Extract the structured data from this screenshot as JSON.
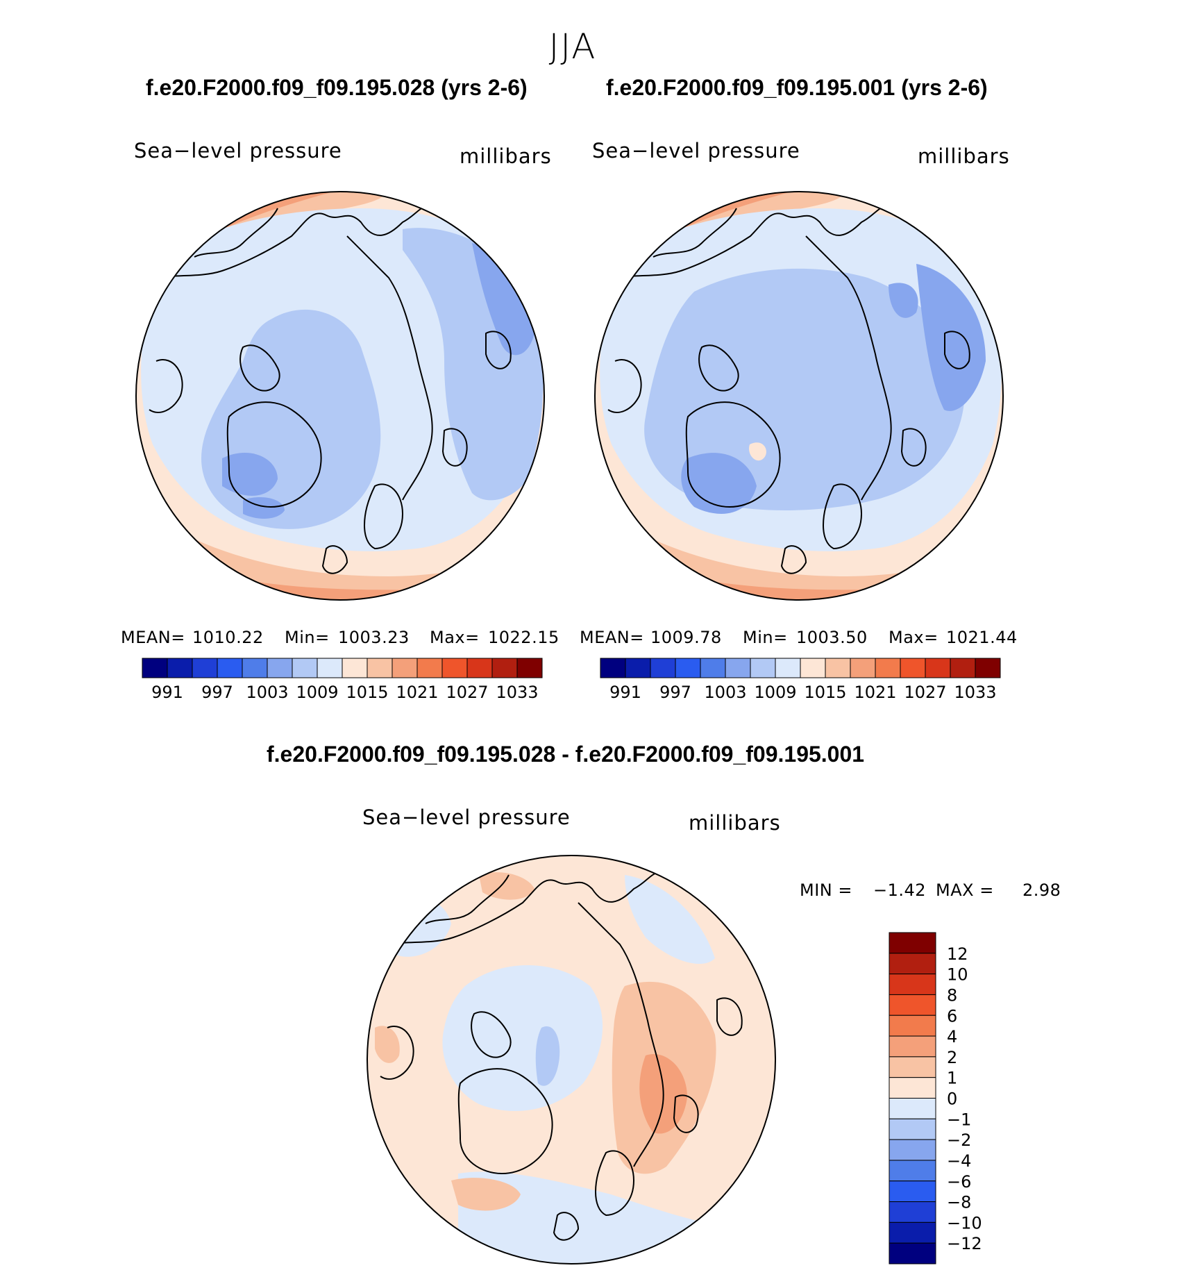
{
  "figure": {
    "season": "JJA"
  },
  "panels": [
    {
      "title": "f.e20.F2000.f09_f09.195.028 (yrs 2-6)",
      "variable": "Sea−level pressure",
      "units": "millibars",
      "stats": {
        "mean_label": "MEAN=",
        "mean": "1010.22",
        "min_label": "Min=",
        "min": "1003.23",
        "max_label": "Max=",
        "max": "1022.15"
      }
    },
    {
      "title": "f.e20.F2000.f09_f09.195.001 (yrs 2-6)",
      "variable": "Sea−level pressure",
      "units": "millibars",
      "stats": {
        "mean_label": "MEAN=",
        "mean": "1009.78",
        "min_label": "Min=",
        "min": "1003.50",
        "max_label": "Max=",
        "max": "1021.44"
      }
    },
    {
      "title": "f.e20.F2000.f09_f09.195.028 - f.e20.F2000.f09_f09.195.001",
      "variable": "Sea−level pressure",
      "units": "millibars",
      "stats": {
        "min_label": "MIN =",
        "min": "−1.42",
        "max_label": "MAX =",
        "max": "2.98"
      }
    }
  ],
  "colorbars": {
    "absolute": {
      "colors": [
        "#00007f",
        "#0a1dab",
        "#1f3fd6",
        "#2a5cf0",
        "#4f7de9",
        "#87a6ee",
        "#b2c9f5",
        "#dce9fb",
        "#fde6d6",
        "#f8c3a4",
        "#f4a07a",
        "#f27b4c",
        "#ef552b",
        "#d8361a",
        "#b11f10",
        "#7f0000"
      ],
      "tick_labels": [
        "991",
        "997",
        "1003",
        "1009",
        "1015",
        "1021",
        "1027",
        "1033"
      ]
    },
    "difference": {
      "colors": [
        "#7f0000",
        "#b11f10",
        "#d8361a",
        "#ef552b",
        "#f27b4c",
        "#f4a07a",
        "#f8c3a4",
        "#fde6d6",
        "#dce9fb",
        "#b2c9f5",
        "#87a6ee",
        "#4f7de9",
        "#2a5cf0",
        "#1f3fd6",
        "#0a1dab",
        "#00007f"
      ],
      "tick_labels": [
        "12",
        "10",
        "8",
        "6",
        "4",
        "2",
        "1",
        "0",
        "−1",
        "−2",
        "−4",
        "−6",
        "−8",
        "−10",
        "−12"
      ]
    }
  },
  "chart_data": [
    {
      "type": "heatmap",
      "projection": "north polar stereographic",
      "title": "f.e20.F2000.f09_f09.195.028 (yrs 2-6)",
      "variable": "Sea-level pressure",
      "units": "millibars",
      "contour_levels": [
        988,
        991,
        994,
        997,
        1000,
        1003,
        1006,
        1009,
        1012,
        1015,
        1018,
        1021,
        1024,
        1027,
        1030,
        1033
      ],
      "mean": 1010.22,
      "min": 1003.23,
      "max": 1022.15
    },
    {
      "type": "heatmap",
      "projection": "north polar stereographic",
      "title": "f.e20.F2000.f09_f09.195.001 (yrs 2-6)",
      "variable": "Sea-level pressure",
      "units": "millibars",
      "contour_levels": [
        988,
        991,
        994,
        997,
        1000,
        1003,
        1006,
        1009,
        1012,
        1015,
        1018,
        1021,
        1024,
        1027,
        1030,
        1033
      ],
      "mean": 1009.78,
      "min": 1003.5,
      "max": 1021.44
    },
    {
      "type": "heatmap",
      "projection": "north polar stereographic",
      "title": "f.e20.F2000.f09_f09.195.028 - f.e20.F2000.f09_f09.195.001",
      "variable": "Sea-level pressure difference",
      "units": "millibars",
      "contour_levels": [
        -12,
        -10,
        -8,
        -6,
        -4,
        -2,
        -1,
        0,
        1,
        2,
        4,
        6,
        8,
        10,
        12
      ],
      "min": -1.42,
      "max": 2.98
    }
  ]
}
